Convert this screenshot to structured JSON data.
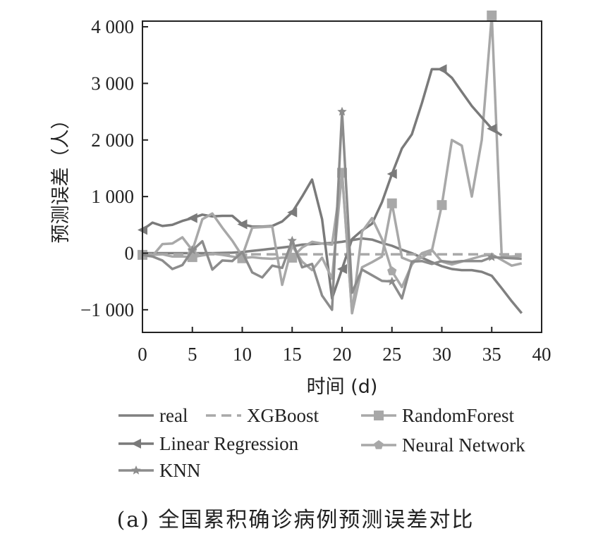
{
  "chart_data": {
    "type": "line",
    "title": "",
    "caption": "(a) 全国累积确诊病例预测误差对比",
    "xlabel": "时间 (d)",
    "ylabel": "预测误差（人）",
    "xlim": [
      0,
      40
    ],
    "ylim": [
      -1400,
      4100
    ],
    "xticks": [
      0,
      5,
      10,
      15,
      20,
      25,
      30,
      35,
      40
    ],
    "xtick_labels": [
      "0",
      "5",
      "10",
      "15",
      "20",
      "25",
      "30",
      "35",
      "40"
    ],
    "yticks": [
      -1000,
      0,
      1000,
      2000,
      3000,
      4000
    ],
    "ytick_labels": [
      "−1 000",
      "0",
      "1 000",
      "2 000",
      "3 000",
      "4 000"
    ],
    "legend_placement": "below plot",
    "series": [
      {
        "name": "real",
        "color": "#808080",
        "dash": "",
        "marker": "none",
        "x": [
          0,
          1,
          2,
          3,
          4,
          5,
          6,
          7,
          8,
          9,
          10,
          11,
          12,
          13,
          14,
          15,
          16,
          17,
          18,
          19,
          20,
          21,
          22,
          23,
          24,
          25,
          26,
          27,
          28,
          29,
          30,
          31,
          32,
          33,
          34,
          35,
          36,
          37,
          38
        ],
        "y": [
          0,
          0,
          0,
          0,
          0,
          0,
          0,
          0,
          5,
          10,
          20,
          40,
          60,
          80,
          100,
          120,
          150,
          160,
          170,
          180,
          200,
          230,
          260,
          240,
          180,
          130,
          60,
          0,
          -80,
          -160,
          -230,
          -280,
          -300,
          -300,
          -330,
          -400,
          -620,
          -850,
          -1060
        ]
      },
      {
        "name": "XGBoost",
        "color": "#a8a8a8",
        "dash": "14 8",
        "marker": "none",
        "x": [
          0,
          38
        ],
        "y": [
          -20,
          -20
        ]
      },
      {
        "name": "RandomForest",
        "color": "#a8a8a8",
        "dash": "",
        "marker": "square",
        "marker_every": [
          0,
          5,
          10,
          15,
          20,
          25,
          30,
          35
        ],
        "x": [
          0,
          1,
          2,
          3,
          4,
          5,
          6,
          7,
          8,
          9,
          10,
          11,
          12,
          13,
          14,
          15,
          16,
          17,
          18,
          19,
          20,
          21,
          22,
          23,
          24,
          25,
          26,
          27,
          28,
          29,
          30,
          31,
          32,
          33,
          34,
          35,
          36,
          37,
          38
        ],
        "y": [
          -30,
          -30,
          -20,
          -60,
          -60,
          -70,
          -40,
          -10,
          -30,
          -60,
          -90,
          -70,
          -90,
          -100,
          -80,
          -80,
          100,
          200,
          170,
          150,
          1420,
          -1060,
          -250,
          -160,
          -60,
          880,
          -80,
          -150,
          -80,
          40,
          850,
          2000,
          1900,
          1000,
          2000,
          4200,
          -60,
          -60,
          -50
        ]
      },
      {
        "name": "Linear Regression",
        "color": "#7a7a7a",
        "dash": "",
        "marker": "triangle-left",
        "marker_every": [
          0,
          5,
          10,
          15,
          20,
          25,
          30,
          35
        ],
        "x": [
          0,
          1,
          2,
          3,
          4,
          5,
          6,
          7,
          8,
          9,
          10,
          11,
          12,
          13,
          14,
          15,
          16,
          17,
          18,
          19,
          20,
          21,
          22,
          23,
          24,
          25,
          26,
          27,
          28,
          29,
          30,
          31,
          32,
          33,
          34,
          35,
          36
        ],
        "y": [
          410,
          540,
          480,
          500,
          570,
          620,
          680,
          650,
          660,
          660,
          510,
          470,
          470,
          480,
          560,
          720,
          1000,
          1300,
          600,
          -800,
          -280,
          250,
          400,
          520,
          900,
          1400,
          1850,
          2100,
          2650,
          3250,
          3250,
          3100,
          2850,
          2600,
          2400,
          2200,
          2080
        ]
      },
      {
        "name": "Neural Network",
        "color": "#a8a8a8",
        "dash": "",
        "marker": "pentagon",
        "marker_every": [
          5,
          25
        ],
        "x": [
          0,
          1,
          2,
          3,
          4,
          5,
          6,
          7,
          8,
          9,
          10,
          11,
          12,
          13,
          14,
          15,
          16,
          17,
          18,
          19,
          20,
          21,
          22,
          23,
          24,
          25,
          26,
          27,
          28,
          29,
          30,
          31,
          32,
          33,
          34,
          35,
          36,
          37,
          38
        ],
        "y": [
          -50,
          -50,
          160,
          170,
          280,
          50,
          600,
          700,
          450,
          220,
          -50,
          450,
          460,
          470,
          -560,
          130,
          -150,
          -300,
          -80,
          -450,
          1430,
          -1060,
          380,
          620,
          250,
          -320,
          -600,
          -200,
          0,
          60,
          -150,
          -200,
          -150,
          -100,
          -50,
          -20,
          -120,
          -220,
          -180
        ]
      },
      {
        "name": "KNN",
        "color": "#8c8c8c",
        "dash": "",
        "marker": "star",
        "marker_every": [
          5,
          15,
          20,
          25,
          35
        ],
        "x": [
          0,
          1,
          2,
          3,
          4,
          5,
          6,
          7,
          8,
          9,
          10,
          11,
          12,
          13,
          14,
          15,
          16,
          17,
          18,
          19,
          20,
          21,
          22,
          23,
          24,
          25,
          26,
          27,
          28,
          29,
          30,
          31,
          32,
          33,
          34,
          35,
          36,
          37,
          38
        ],
        "y": [
          -30,
          -60,
          -130,
          -280,
          -210,
          50,
          210,
          -290,
          -130,
          -140,
          20,
          -340,
          -430,
          -220,
          -260,
          220,
          -250,
          -190,
          -750,
          -1000,
          2500,
          -700,
          -290,
          -390,
          -490,
          -500,
          -800,
          -150,
          -140,
          -190,
          -140,
          -160,
          -140,
          -140,
          -140,
          -70,
          -80,
          -90,
          -100
        ]
      }
    ]
  }
}
